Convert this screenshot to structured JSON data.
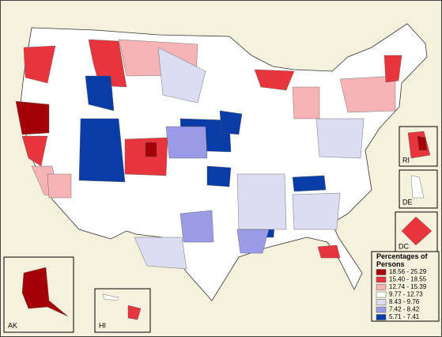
{
  "legend": {
    "title": "Percentages of Persons",
    "items": [
      {
        "label": "18.56 - 25.29",
        "color": "#a30008"
      },
      {
        "label": "15.40 - 18.55",
        "color": "#e8343c"
      },
      {
        "label": "12.74 - 15.39",
        "color": "#f6b4b6"
      },
      {
        "label": "9.77 - 12.73",
        "color": "#ffffff"
      },
      {
        "label": "8.43 - 9.76",
        "color": "#dcdcf4"
      },
      {
        "label": "7.42 - 8.42",
        "color": "#9a9ae6"
      },
      {
        "label": "5.71 - 7.41",
        "color": "#0a3ca8"
      }
    ]
  },
  "insets": [
    "AK",
    "HI",
    "RI",
    "DE",
    "DC"
  ]
}
